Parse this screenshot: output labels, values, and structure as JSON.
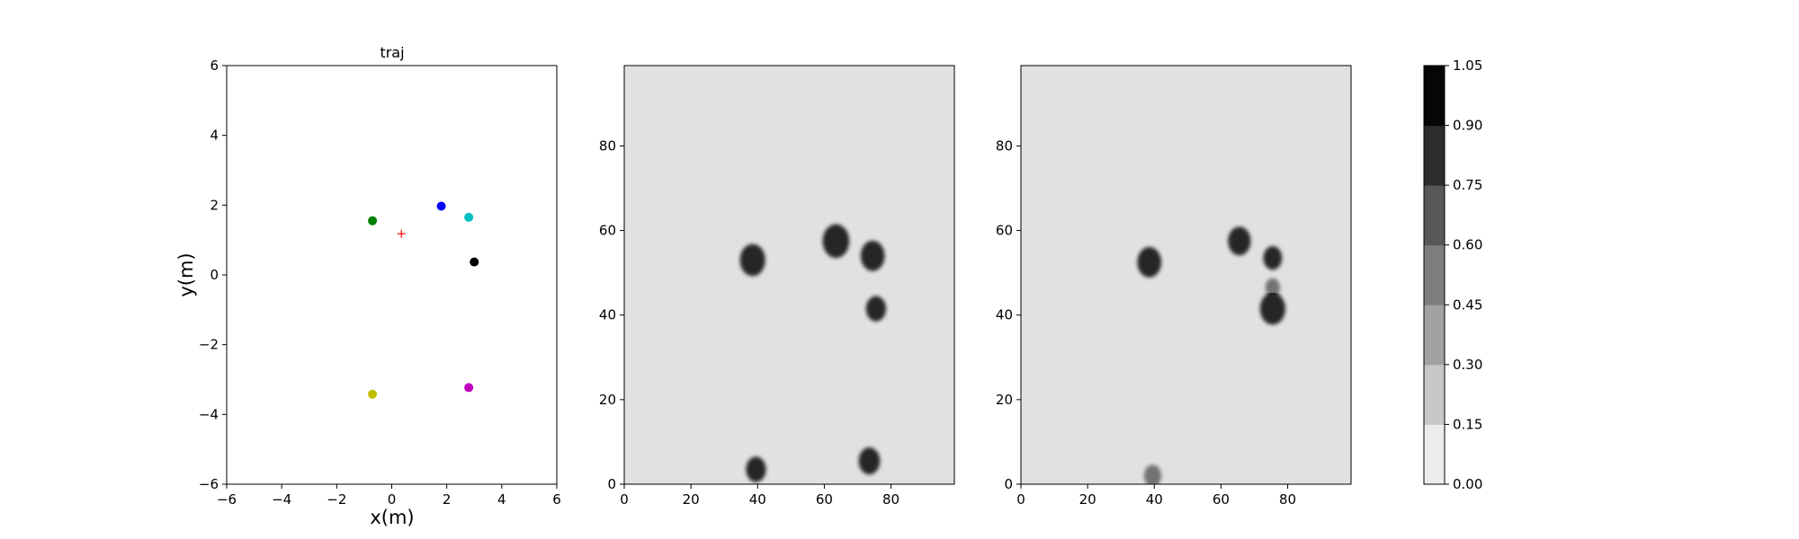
{
  "chart_data": [
    {
      "type": "scatter",
      "title": "traj",
      "xlabel": "x(m)",
      "ylabel": "y(m)",
      "xlim": [
        -6,
        6
      ],
      "ylim": [
        -6,
        6
      ],
      "xticks": [
        -6,
        -4,
        -2,
        0,
        2,
        4,
        6
      ],
      "yticks": [
        -6,
        -4,
        -2,
        0,
        2,
        4,
        6
      ],
      "grid": false,
      "points": [
        {
          "x": -0.7,
          "y": 1.55,
          "color": "#008000",
          "marker": "circle"
        },
        {
          "x": 1.8,
          "y": 1.97,
          "color": "#0000ff",
          "marker": "circle"
        },
        {
          "x": 2.8,
          "y": 1.65,
          "color": "#00bfbf",
          "marker": "circle"
        },
        {
          "x": 3.0,
          "y": 0.37,
          "color": "#000000",
          "marker": "circle"
        },
        {
          "x": -0.7,
          "y": -3.42,
          "color": "#bfbf00",
          "marker": "circle"
        },
        {
          "x": 2.8,
          "y": -3.23,
          "color": "#bf00bf",
          "marker": "circle"
        },
        {
          "x": 0.35,
          "y": 1.18,
          "color": "#ff0000",
          "marker": "plus"
        }
      ]
    },
    {
      "type": "heatmap",
      "title": "",
      "xlim": [
        0,
        99
      ],
      "ylim": [
        0,
        99
      ],
      "xticks": [
        0,
        20,
        40,
        60,
        80
      ],
      "yticks": [
        0,
        20,
        40,
        60,
        80
      ],
      "background_level": 0.05,
      "blobs": [
        {
          "x": 38.5,
          "y": 53,
          "r": 3.8,
          "level": 1.0
        },
        {
          "x": 63.5,
          "y": 57.5,
          "r": 4.0,
          "level": 1.0
        },
        {
          "x": 74.5,
          "y": 54,
          "r": 3.6,
          "level": 1.0
        },
        {
          "x": 75.5,
          "y": 41.5,
          "r": 3.0,
          "level": 1.0
        },
        {
          "x": 39.5,
          "y": 3.5,
          "r": 3.0,
          "level": 1.0
        },
        {
          "x": 73.5,
          "y": 5.5,
          "r": 3.2,
          "level": 1.0
        }
      ]
    },
    {
      "type": "heatmap",
      "title": "",
      "xlim": [
        0,
        99
      ],
      "ylim": [
        0,
        99
      ],
      "xticks": [
        0,
        20,
        40,
        60,
        80
      ],
      "yticks": [
        0,
        20,
        40,
        60,
        80
      ],
      "background_level": 0.05,
      "blobs": [
        {
          "x": 38.5,
          "y": 52.5,
          "r": 3.6,
          "level": 1.0
        },
        {
          "x": 65.5,
          "y": 57.5,
          "r": 3.4,
          "level": 1.0
        },
        {
          "x": 75.5,
          "y": 53.5,
          "r": 2.8,
          "level": 1.0
        },
        {
          "x": 75.5,
          "y": 46.5,
          "r": 2.2,
          "level": 0.4
        },
        {
          "x": 75.5,
          "y": 41.5,
          "r": 3.8,
          "level": 1.0
        },
        {
          "x": 39.5,
          "y": 2.0,
          "r": 2.6,
          "level": 0.45
        }
      ]
    },
    {
      "type": "colorbar",
      "vmin": 0.0,
      "vmax": 1.05,
      "levels": [
        "0.00",
        "0.15",
        "0.30",
        "0.45",
        "0.60",
        "0.75",
        "0.90",
        "1.05"
      ],
      "colors": [
        "#ececec",
        "#c8c8c8",
        "#a2a2a2",
        "#7e7e7e",
        "#585858",
        "#2c2c2c",
        "#060606"
      ]
    }
  ]
}
